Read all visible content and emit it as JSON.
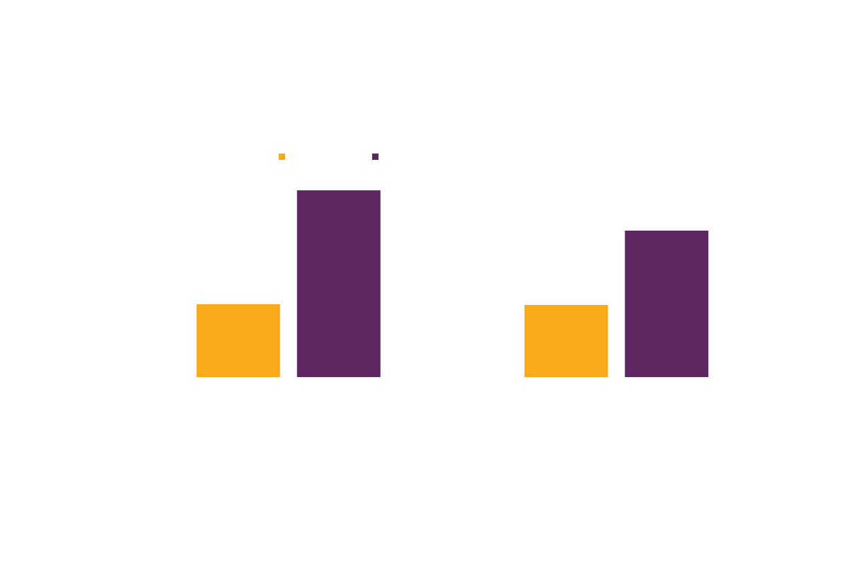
{
  "chart_data": {
    "type": "bar",
    "categories": [
      null,
      null
    ],
    "series": [
      {
        "color": "#f9aa1a",
        "values": [
          103,
          102
        ]
      },
      {
        "color": "#5e2761",
        "values": [
          264,
          207
        ]
      }
    ]
  }
}
